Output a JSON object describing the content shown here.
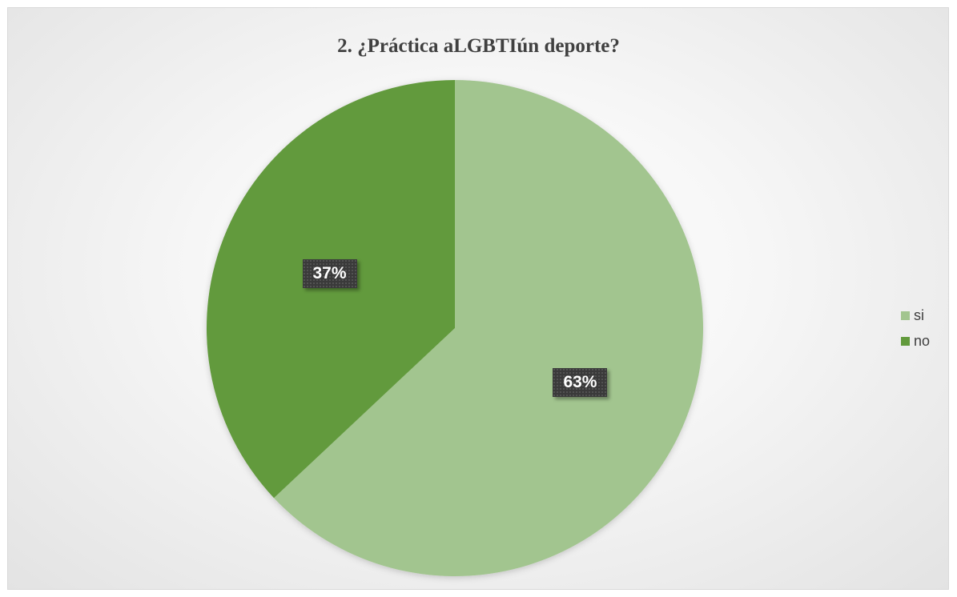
{
  "chart_data": {
    "type": "pie",
    "title": "2. ¿Práctica aLGBTIún deporte?",
    "categories": [
      "si",
      "no"
    ],
    "values": [
      63,
      37
    ],
    "data_labels": [
      "63%",
      "37%"
    ],
    "colors": [
      "#a2c58f",
      "#629a3c"
    ],
    "legend_position": "right"
  }
}
